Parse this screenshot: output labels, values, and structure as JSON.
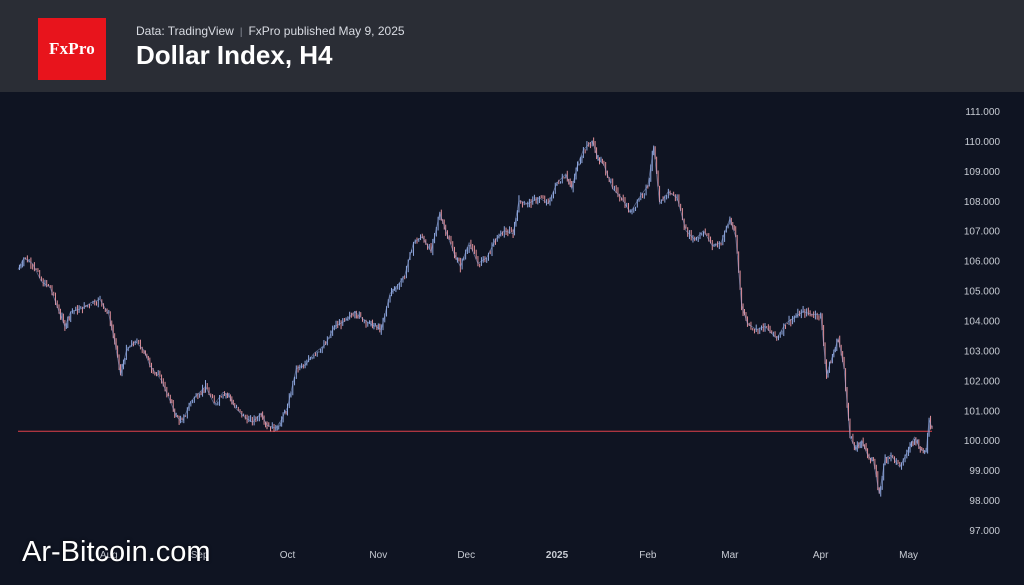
{
  "header": {
    "logo_text": "FxPro",
    "source": "Data: TradingView",
    "publisher": "FxPro published May 9, 2025",
    "title": "Dollar Index, H4"
  },
  "watermark": "Ar-Bitcoin.com",
  "colors": {
    "header_bg": "#2a2d35",
    "plot_bg": "#0f1422",
    "brand_red": "#e8141c",
    "candle_up": "#8fa8e0",
    "candle_down": "#e0909a",
    "support_line": "#e0404a",
    "axis_text": "#c8ccd4"
  },
  "chart_data": {
    "type": "line",
    "title": "Dollar Index, H4",
    "ylim": [
      97,
      111
    ],
    "y_ticks": [
      "111.000",
      "110.000",
      "109.000",
      "108.000",
      "107.000",
      "106.000",
      "105.000",
      "104.000",
      "103.000",
      "102.000",
      "101.000",
      "100.000",
      "99.000",
      "98.000",
      "97.000"
    ],
    "y_tick_values": [
      111,
      110,
      109,
      108,
      107,
      106,
      105,
      104,
      103,
      102,
      101,
      100,
      99,
      98,
      97
    ],
    "x_ticks": [
      {
        "label": "Aug",
        "date": "2024-08-01"
      },
      {
        "label": "Sep",
        "date": "2024-09-01"
      },
      {
        "label": "Oct",
        "date": "2024-10-01"
      },
      {
        "label": "Nov",
        "date": "2024-11-01"
      },
      {
        "label": "Dec",
        "date": "2024-12-01"
      },
      {
        "label": "2025",
        "date": "2025-01-01",
        "bold": true
      },
      {
        "label": "Feb",
        "date": "2025-02-01"
      },
      {
        "label": "Mar",
        "date": "2025-03-01"
      },
      {
        "label": "Apr",
        "date": "2025-04-01"
      },
      {
        "label": "May",
        "date": "2025-05-01"
      }
    ],
    "support_level": 100.3,
    "series": [
      {
        "values": [
          [
            "2024-07-01",
            105.7
          ],
          [
            "2024-07-03",
            106.1
          ],
          [
            "2024-07-06",
            105.9
          ],
          [
            "2024-07-09",
            105.3
          ],
          [
            "2024-07-12",
            105.1
          ],
          [
            "2024-07-15",
            104.3
          ],
          [
            "2024-07-17",
            103.8
          ],
          [
            "2024-07-19",
            104.3
          ],
          [
            "2024-07-23",
            104.4
          ],
          [
            "2024-07-26",
            104.6
          ],
          [
            "2024-07-29",
            104.7
          ],
          [
            "2024-08-01",
            104.2
          ],
          [
            "2024-08-03",
            103.3
          ],
          [
            "2024-08-05",
            102.2
          ],
          [
            "2024-08-07",
            103.0
          ],
          [
            "2024-08-10",
            103.3
          ],
          [
            "2024-08-13",
            103.0
          ],
          [
            "2024-08-15",
            102.5
          ],
          [
            "2024-08-19",
            102.0
          ],
          [
            "2024-08-22",
            101.3
          ],
          [
            "2024-08-24",
            100.8
          ],
          [
            "2024-08-26",
            100.6
          ],
          [
            "2024-08-29",
            101.3
          ],
          [
            "2024-09-01",
            101.6
          ],
          [
            "2024-09-03",
            101.8
          ],
          [
            "2024-09-06",
            101.2
          ],
          [
            "2024-09-09",
            101.6
          ],
          [
            "2024-09-11",
            101.5
          ],
          [
            "2024-09-13",
            101.1
          ],
          [
            "2024-09-16",
            100.8
          ],
          [
            "2024-09-19",
            100.6
          ],
          [
            "2024-09-22",
            100.9
          ],
          [
            "2024-09-24",
            100.5
          ],
          [
            "2024-09-27",
            100.4
          ],
          [
            "2024-09-29",
            100.7
          ],
          [
            "2024-10-01",
            101.1
          ],
          [
            "2024-10-04",
            102.4
          ],
          [
            "2024-10-07",
            102.5
          ],
          [
            "2024-10-10",
            102.9
          ],
          [
            "2024-10-14",
            103.2
          ],
          [
            "2024-10-17",
            103.8
          ],
          [
            "2024-10-21",
            104.0
          ],
          [
            "2024-10-24",
            104.3
          ],
          [
            "2024-10-26",
            104.1
          ],
          [
            "2024-10-29",
            103.9
          ],
          [
            "2024-10-31",
            103.8
          ],
          [
            "2024-11-02",
            103.7
          ],
          [
            "2024-11-05",
            104.9
          ],
          [
            "2024-11-07",
            105.1
          ],
          [
            "2024-11-10",
            105.5
          ],
          [
            "2024-11-13",
            106.6
          ],
          [
            "2024-11-16",
            106.8
          ],
          [
            "2024-11-19",
            106.3
          ],
          [
            "2024-11-22",
            107.6
          ],
          [
            "2024-11-24",
            107.0
          ],
          [
            "2024-11-27",
            106.2
          ],
          [
            "2024-11-29",
            105.8
          ],
          [
            "2024-12-02",
            106.6
          ],
          [
            "2024-12-05",
            105.9
          ],
          [
            "2024-12-08",
            106.1
          ],
          [
            "2024-12-11",
            106.7
          ],
          [
            "2024-12-14",
            107.0
          ],
          [
            "2024-12-17",
            106.9
          ],
          [
            "2024-12-19",
            108.0
          ],
          [
            "2024-12-22",
            107.9
          ],
          [
            "2024-12-26",
            108.1
          ],
          [
            "2024-12-29",
            107.9
          ],
          [
            "2025-01-01",
            108.6
          ],
          [
            "2025-01-04",
            108.9
          ],
          [
            "2025-01-06",
            108.4
          ],
          [
            "2025-01-08",
            109.2
          ],
          [
            "2025-01-10",
            109.7
          ],
          [
            "2025-01-13",
            110.0
          ],
          [
            "2025-01-15",
            109.4
          ],
          [
            "2025-01-17",
            109.2
          ],
          [
            "2025-01-20",
            108.4
          ],
          [
            "2025-01-23",
            108.1
          ],
          [
            "2025-01-26",
            107.6
          ],
          [
            "2025-01-29",
            108.1
          ],
          [
            "2025-02-01",
            108.5
          ],
          [
            "2025-02-03",
            109.8
          ],
          [
            "2025-02-05",
            107.9
          ],
          [
            "2025-02-08",
            108.3
          ],
          [
            "2025-02-11",
            108.1
          ],
          [
            "2025-02-14",
            107.0
          ],
          [
            "2025-02-17",
            106.7
          ],
          [
            "2025-02-20",
            107.0
          ],
          [
            "2025-02-23",
            106.5
          ],
          [
            "2025-02-26",
            106.6
          ],
          [
            "2025-03-01",
            107.4
          ],
          [
            "2025-03-03",
            106.8
          ],
          [
            "2025-03-05",
            104.5
          ],
          [
            "2025-03-07",
            103.9
          ],
          [
            "2025-03-10",
            103.7
          ],
          [
            "2025-03-13",
            103.8
          ],
          [
            "2025-03-17",
            103.4
          ],
          [
            "2025-03-20",
            103.9
          ],
          [
            "2025-03-23",
            104.1
          ],
          [
            "2025-03-26",
            104.3
          ],
          [
            "2025-03-29",
            104.2
          ],
          [
            "2025-04-01",
            104.2
          ],
          [
            "2025-04-03",
            102.2
          ],
          [
            "2025-04-05",
            102.8
          ],
          [
            "2025-04-07",
            103.4
          ],
          [
            "2025-04-09",
            102.4
          ],
          [
            "2025-04-11",
            100.1
          ],
          [
            "2025-04-13",
            99.7
          ],
          [
            "2025-04-15",
            100.0
          ],
          [
            "2025-04-17",
            99.5
          ],
          [
            "2025-04-19",
            99.3
          ],
          [
            "2025-04-21",
            98.2
          ],
          [
            "2025-04-23",
            99.4
          ],
          [
            "2025-04-25",
            99.5
          ],
          [
            "2025-04-28",
            99.1
          ],
          [
            "2025-05-01",
            99.7
          ],
          [
            "2025-05-03",
            100.1
          ],
          [
            "2025-05-05",
            99.7
          ],
          [
            "2025-05-07",
            99.6
          ],
          [
            "2025-05-08",
            100.7
          ],
          [
            "2025-05-09",
            100.4
          ]
        ]
      }
    ]
  }
}
